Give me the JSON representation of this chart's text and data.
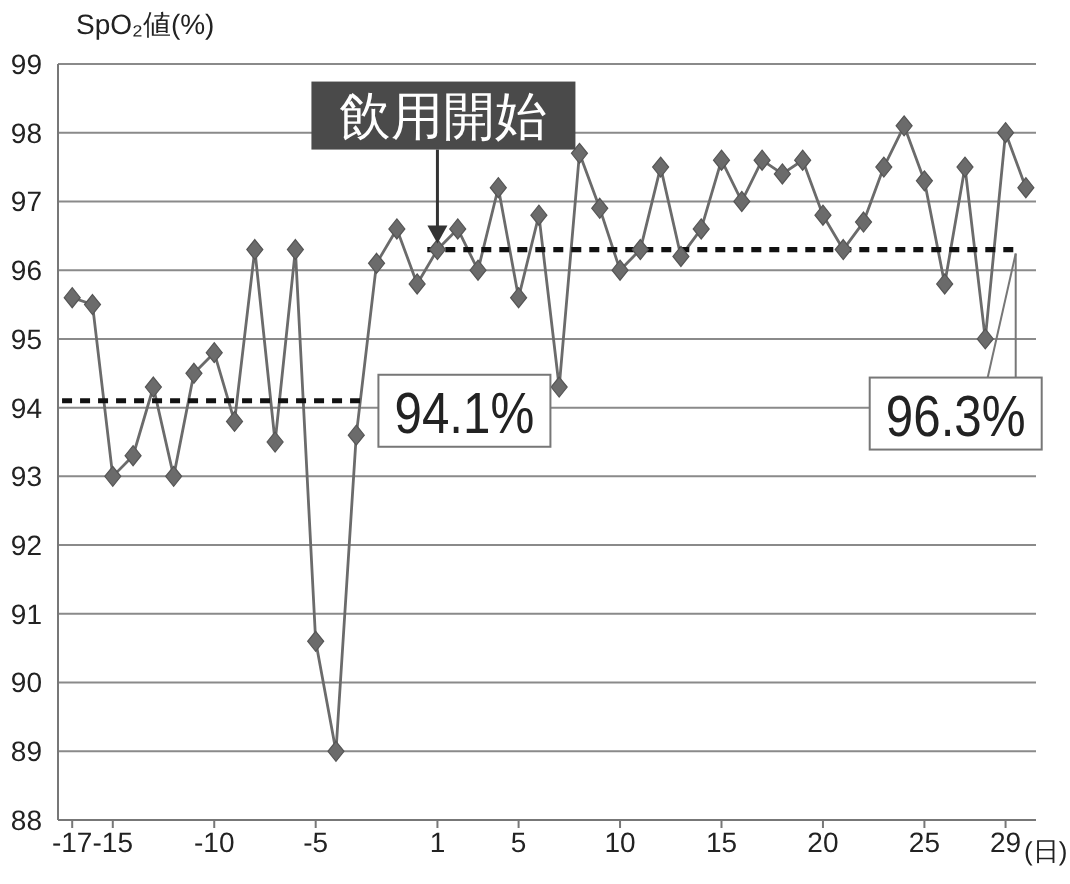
{
  "chart_data": {
    "type": "line",
    "ylabel": "SpO₂値(%)",
    "xlabel": "(日)",
    "xlim": [
      -17.7,
      30.5
    ],
    "xticks": [
      -17,
      -15,
      -10,
      -5,
      1,
      5,
      10,
      15,
      20,
      25,
      29
    ],
    "ylim": [
      88,
      99
    ],
    "yticks": [
      88,
      89,
      90,
      91,
      92,
      93,
      94,
      95,
      96,
      97,
      98,
      99
    ],
    "grid": "y",
    "marker": "diamond",
    "line_style": "solid",
    "series": [
      {
        "color": "#6b6b6b",
        "x": [
          -17,
          -16,
          -15,
          -14,
          -13,
          -12,
          -11,
          -10,
          -9,
          -8,
          -7,
          -6,
          -5,
          -4,
          -3,
          -2,
          -1,
          0,
          1,
          2,
          3,
          4,
          5,
          6,
          7,
          8,
          9,
          10,
          11,
          12,
          13,
          14,
          15,
          16,
          17,
          18,
          19,
          20,
          21,
          22,
          23,
          24,
          25,
          26,
          27,
          28,
          29,
          30
        ],
        "values": [
          95.6,
          95.5,
          93.0,
          93.3,
          94.3,
          93.0,
          94.5,
          94.8,
          93.8,
          96.3,
          93.5,
          96.3,
          90.6,
          89.0,
          93.6,
          96.1,
          96.6,
          95.8,
          96.3,
          96.6,
          96.0,
          97.2,
          95.6,
          96.8,
          94.3,
          97.7,
          96.9,
          96.0,
          96.3,
          97.5,
          96.2,
          96.6,
          97.6,
          97.0,
          97.6,
          97.4,
          97.6,
          96.8,
          96.3,
          96.7,
          97.5,
          98.1,
          97.3,
          95.8,
          97.5,
          95.0,
          98.0,
          97.2
        ]
      },
      {
        "type": "line",
        "color": "#111111",
        "line_style": "dashed",
        "marker": "none",
        "x": [
          -17.5,
          -2.5
        ],
        "values": [
          94.1,
          94.1
        ]
      },
      {
        "type": "line",
        "color": "#111111",
        "line_style": "dashed",
        "marker": "none",
        "x": [
          0.5,
          29.5
        ],
        "values": [
          96.3,
          96.3
        ]
      }
    ],
    "annotations": [
      {
        "text": "飲用開始",
        "x": 1,
        "y": 96.3
      },
      {
        "text": "94.1%",
        "x": -2.5,
        "y": 94.1
      },
      {
        "text": "96.3%",
        "x": 29.5,
        "y": 96.3
      }
    ]
  }
}
